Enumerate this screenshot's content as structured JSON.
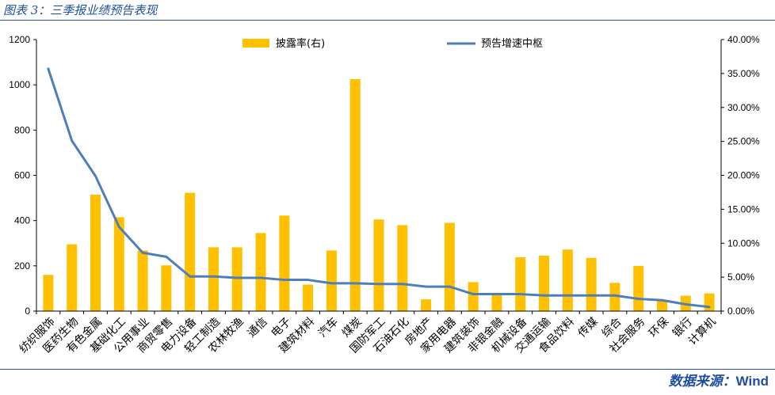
{
  "header": {
    "title": "图表 3：三季报业绩预告表现"
  },
  "footer": {
    "source_label": "数据来源：",
    "source_name": "Wind"
  },
  "colors": {
    "accent": "#1F4E9E",
    "bar": "#FFC000",
    "line": "#4F7EBD",
    "axis": "#000000"
  },
  "chart_data": {
    "type": "bar",
    "categories": [
      "纺织服饰",
      "医药生物",
      "有色金属",
      "基础化工",
      "公用事业",
      "商贸零售",
      "电力设备",
      "轻工制造",
      "农林牧渔",
      "通信",
      "电子",
      "建筑材料",
      "汽车",
      "煤炭",
      "国防军工",
      "石油石化",
      "房地产",
      "家用电器",
      "建筑装饰",
      "非银金融",
      "机械设备",
      "交通运输",
      "食品饮料",
      "传媒",
      "综合",
      "社会服务",
      "环保",
      "银行",
      "计算机"
    ],
    "series": [
      {
        "name": "披露率(右)",
        "type": "bar",
        "axis": "left",
        "values": [
          160,
          295,
          515,
          415,
          268,
          202,
          523,
          282,
          282,
          345,
          422,
          117,
          268,
          1025,
          405,
          380,
          52,
          390,
          128,
          75,
          238,
          245,
          272,
          235,
          125,
          200,
          47,
          68,
          78
        ]
      },
      {
        "name": "预告增速中枢",
        "type": "line",
        "axis": "right",
        "values": [
          35.7,
          25.1,
          19.9,
          12.4,
          8.6,
          8.0,
          5.1,
          5.1,
          4.9,
          4.9,
          4.6,
          4.6,
          4.1,
          4.1,
          4.0,
          4.0,
          3.6,
          3.6,
          2.5,
          2.5,
          2.5,
          2.3,
          2.3,
          2.3,
          2.3,
          1.8,
          1.6,
          1.0,
          0.6
        ]
      }
    ],
    "ylim_left": [
      0,
      1200
    ],
    "ylim_right": [
      0,
      40
    ],
    "yticks_left": [
      "0",
      "200",
      "400",
      "600",
      "800",
      "1000",
      "1200"
    ],
    "yticks_right": [
      "0.00%",
      "5.00%",
      "10.00%",
      "15.00%",
      "20.00%",
      "25.00%",
      "30.00%",
      "35.00%",
      "40.00%"
    ],
    "legend": "top-center",
    "grid": false
  }
}
